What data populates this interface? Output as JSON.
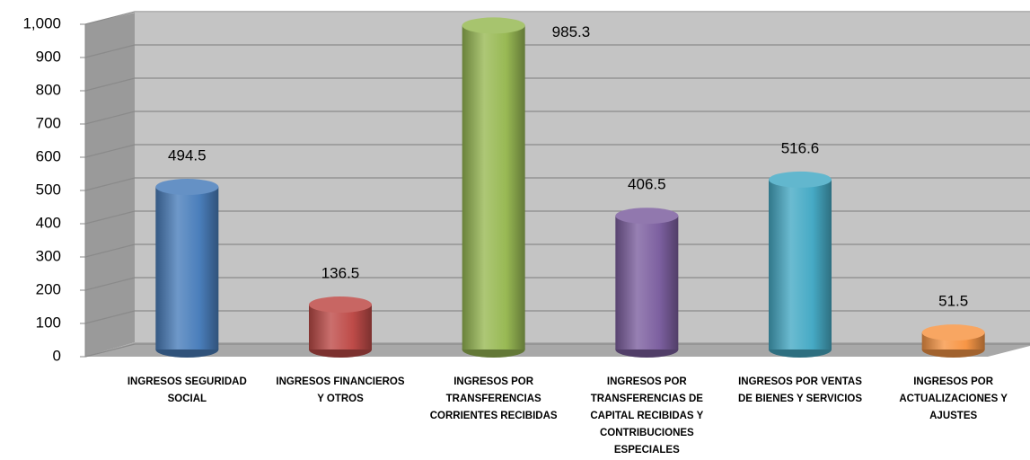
{
  "chart_data": {
    "type": "bar",
    "style": "3d-cylinder",
    "categories": [
      "INGRESOS SEGURIDAD SOCIAL",
      "INGRESOS FINANCIEROS Y OTROS",
      "INGRESOS POR TRANSFERENCIAS CORRIENTES RECIBIDAS",
      "INGRESOS POR TRANSFERENCIAS DE CAPITAL RECIBIDAS Y CONTRIBUCIONES ESPECIALES",
      "INGRESOS POR VENTAS DE BIENES Y SERVICIOS",
      "INGRESOS POR ACTUALIZACIONES Y AJUSTES"
    ],
    "values": [
      494.5,
      136.5,
      985.3,
      406.5,
      516.6,
      51.5
    ],
    "colors": [
      "#4a7ebb",
      "#be4b48",
      "#98b954",
      "#7d60a0",
      "#46aac5",
      "#f79646"
    ],
    "ylim": [
      0,
      1000
    ],
    "yticks": [
      0,
      100,
      200,
      300,
      400,
      500,
      600,
      700,
      800,
      900,
      {
        "value": 1000,
        "label": "1,000"
      }
    ],
    "grid": true
  }
}
